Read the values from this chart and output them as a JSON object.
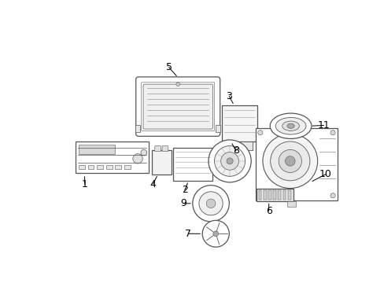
{
  "background_color": "#ffffff",
  "line_color": "#555555",
  "label_color": "#000000",
  "figsize": [
    4.89,
    3.6
  ],
  "dpi": 100
}
